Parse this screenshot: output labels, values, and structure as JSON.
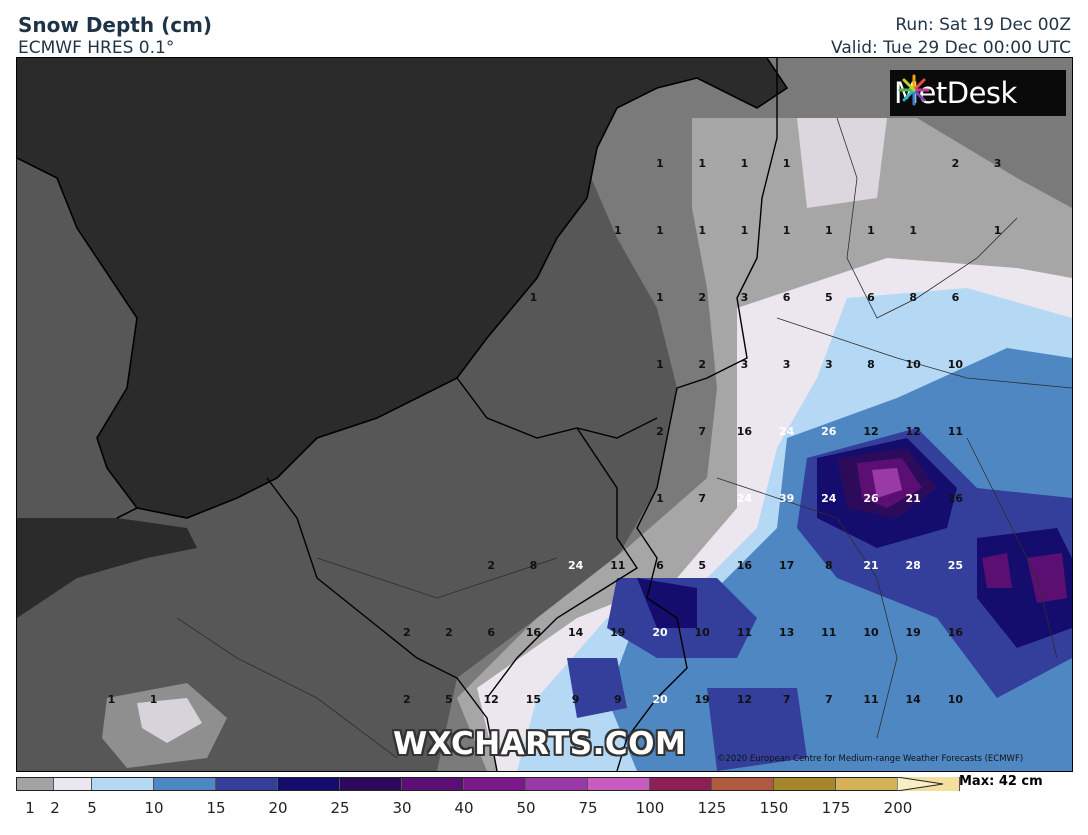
{
  "header": {
    "title": "Snow Depth (cm)",
    "model": "ECMWF HRES 0.1°",
    "run": "Run: Sat 19 Dec 00Z",
    "valid": "Valid: Tue 29 Dec 00:00 UTC"
  },
  "map": {
    "logo_text": "MetDesk",
    "watermark": "WXCHARTS.COM",
    "copyright": "©2020 European Centre for Medium-range Weather Forecasts (ECMWF)"
  },
  "grid_values": [
    {
      "row": 1,
      "values": [
        {
          "col": 15,
          "v": "1"
        },
        {
          "col": 16,
          "v": "1"
        },
        {
          "col": 17,
          "v": "1"
        },
        {
          "col": 18,
          "v": "1"
        },
        {
          "col": 22,
          "v": "2"
        },
        {
          "col": 23,
          "v": "3"
        }
      ]
    },
    {
      "row": 2,
      "values": [
        {
          "col": 14,
          "v": "1"
        },
        {
          "col": 15,
          "v": "1"
        },
        {
          "col": 16,
          "v": "1"
        },
        {
          "col": 17,
          "v": "1"
        },
        {
          "col": 18,
          "v": "1"
        },
        {
          "col": 19,
          "v": "1"
        },
        {
          "col": 20,
          "v": "1"
        },
        {
          "col": 21,
          "v": "1"
        },
        {
          "col": 23,
          "v": "1"
        }
      ]
    },
    {
      "row": 3,
      "values": [
        {
          "col": 12,
          "v": "1"
        },
        {
          "col": 15,
          "v": "1"
        },
        {
          "col": 16,
          "v": "2"
        },
        {
          "col": 17,
          "v": "3"
        },
        {
          "col": 18,
          "v": "6"
        },
        {
          "col": 19,
          "v": "5"
        },
        {
          "col": 20,
          "v": "6"
        },
        {
          "col": 21,
          "v": "8"
        },
        {
          "col": 22,
          "v": "6"
        }
      ]
    },
    {
      "row": 4,
      "values": [
        {
          "col": 15,
          "v": "1"
        },
        {
          "col": 16,
          "v": "2"
        },
        {
          "col": 17,
          "v": "3"
        },
        {
          "col": 18,
          "v": "3"
        },
        {
          "col": 19,
          "v": "3"
        },
        {
          "col": 20,
          "v": "8"
        },
        {
          "col": 21,
          "v": "10"
        },
        {
          "col": 22,
          "v": "10"
        }
      ]
    },
    {
      "row": 5,
      "values": [
        {
          "col": 15,
          "v": "2"
        },
        {
          "col": 16,
          "v": "7"
        },
        {
          "col": 17,
          "v": "16"
        },
        {
          "col": 18,
          "v": "24"
        },
        {
          "col": 19,
          "v": "26"
        },
        {
          "col": 20,
          "v": "12"
        },
        {
          "col": 21,
          "v": "12"
        },
        {
          "col": 22,
          "v": "11"
        }
      ]
    },
    {
      "row": 6,
      "values": [
        {
          "col": 15,
          "v": "1"
        },
        {
          "col": 16,
          "v": "7"
        },
        {
          "col": 17,
          "v": "24"
        },
        {
          "col": 18,
          "v": "39"
        },
        {
          "col": 19,
          "v": "24"
        },
        {
          "col": 20,
          "v": "26"
        },
        {
          "col": 21,
          "v": "21"
        },
        {
          "col": 22,
          "v": "16"
        }
      ]
    },
    {
      "row": 7,
      "values": [
        {
          "col": 11,
          "v": "2"
        },
        {
          "col": 12,
          "v": "8"
        },
        {
          "col": 13,
          "v": "24"
        },
        {
          "col": 14,
          "v": "11"
        },
        {
          "col": 15,
          "v": "6"
        },
        {
          "col": 16,
          "v": "5"
        },
        {
          "col": 17,
          "v": "16"
        },
        {
          "col": 18,
          "v": "17"
        },
        {
          "col": 19,
          "v": "8"
        },
        {
          "col": 20,
          "v": "21"
        },
        {
          "col": 21,
          "v": "28"
        },
        {
          "col": 22,
          "v": "25"
        }
      ]
    },
    {
      "row": 8,
      "values": [
        {
          "col": 9,
          "v": "2"
        },
        {
          "col": 10,
          "v": "2"
        },
        {
          "col": 11,
          "v": "6"
        },
        {
          "col": 12,
          "v": "16"
        },
        {
          "col": 13,
          "v": "14"
        },
        {
          "col": 14,
          "v": "19"
        },
        {
          "col": 15,
          "v": "20"
        },
        {
          "col": 16,
          "v": "10"
        },
        {
          "col": 17,
          "v": "11"
        },
        {
          "col": 18,
          "v": "13"
        },
        {
          "col": 19,
          "v": "11"
        },
        {
          "col": 20,
          "v": "10"
        },
        {
          "col": 21,
          "v": "19"
        },
        {
          "col": 22,
          "v": "16"
        }
      ]
    },
    {
      "row": 9,
      "values": [
        {
          "col": 2,
          "v": "1"
        },
        {
          "col": 3,
          "v": "1"
        },
        {
          "col": 9,
          "v": "2"
        },
        {
          "col": 10,
          "v": "5"
        },
        {
          "col": 11,
          "v": "12"
        },
        {
          "col": 12,
          "v": "15"
        },
        {
          "col": 13,
          "v": "9"
        },
        {
          "col": 14,
          "v": "9"
        },
        {
          "col": 15,
          "v": "20"
        },
        {
          "col": 16,
          "v": "19"
        },
        {
          "col": 17,
          "v": "12"
        },
        {
          "col": 18,
          "v": "7"
        },
        {
          "col": 19,
          "v": "7"
        },
        {
          "col": 20,
          "v": "11"
        },
        {
          "col": 21,
          "v": "14"
        },
        {
          "col": 22,
          "v": "10"
        }
      ]
    }
  ],
  "legend": {
    "max_label": "Max: 42 cm",
    "ticks": [
      "1",
      "2",
      "5",
      "10",
      "15",
      "20",
      "25",
      "30",
      "40",
      "50",
      "75",
      "100",
      "125",
      "150",
      "175",
      "200"
    ],
    "colors": [
      "#a3a3a3",
      "#ece6ef",
      "#b5d9f4",
      "#4f87c3",
      "#343f9c",
      "#140d6e",
      "#2c0b5a",
      "#5c0f72",
      "#7a1a8a",
      "#9a3aa6",
      "#c85cc0",
      "#8c1f53",
      "#b05a3f",
      "#a6862a",
      "#d5b25a",
      "#f3dfa0"
    ],
    "arrow_color": "#f8efc8"
  }
}
